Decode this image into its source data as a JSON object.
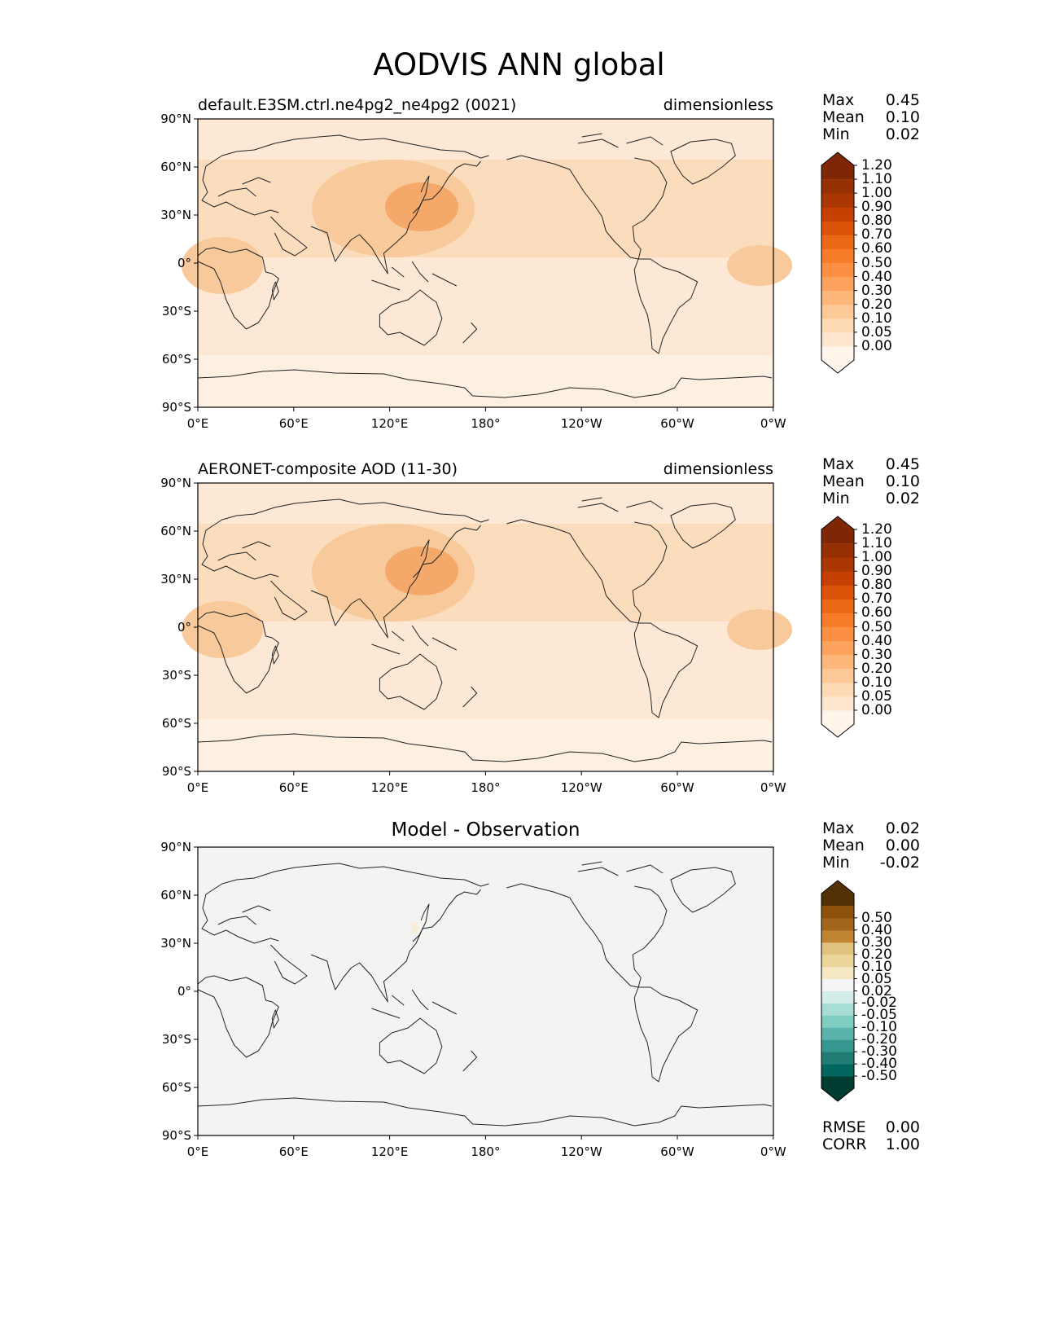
{
  "figure": {
    "title": "AODVIS ANN global"
  },
  "axes": {
    "lat_labels": [
      "90°N",
      "60°N",
      "30°N",
      "0°",
      "30°S",
      "60°S",
      "90°S"
    ],
    "lon_labels": [
      "0°E",
      "60°E",
      "120°E",
      "180°",
      "120°W",
      "60°W",
      "0°W"
    ]
  },
  "panels": [
    {
      "left_title": "default.E3SM.ctrl.ne4pg2_ne4pg2 (0021)",
      "center_title": "",
      "right_title": "dimensionless",
      "stats": [
        [
          "Max",
          "0.45"
        ],
        [
          "Mean",
          "0.10"
        ],
        [
          "Min",
          "0.02"
        ]
      ],
      "colorbar": {
        "levels": [
          "1.20",
          "1.10",
          "1.00",
          "0.90",
          "0.80",
          "0.70",
          "0.60",
          "0.50",
          "0.40",
          "0.30",
          "0.20",
          "0.10",
          "0.05",
          "0.00"
        ],
        "colors": [
          "#fff5eb",
          "#fee6ce",
          "#fdd9b4",
          "#fdc997",
          "#fdb77a",
          "#fda35d",
          "#fd8f42",
          "#f77d2a",
          "#eb6816",
          "#dc540a",
          "#c44103",
          "#ab3703",
          "#963003",
          "#7f2704"
        ]
      },
      "footer_stats": []
    },
    {
      "left_title": "AERONET-composite AOD (11-30)",
      "center_title": "",
      "right_title": "dimensionless",
      "stats": [
        [
          "Max",
          "0.45"
        ],
        [
          "Mean",
          "0.10"
        ],
        [
          "Min",
          "0.02"
        ]
      ],
      "colorbar": {
        "levels": [
          "1.20",
          "1.10",
          "1.00",
          "0.90",
          "0.80",
          "0.70",
          "0.60",
          "0.50",
          "0.40",
          "0.30",
          "0.20",
          "0.10",
          "0.05",
          "0.00"
        ],
        "colors": [
          "#fff5eb",
          "#fee6ce",
          "#fdd9b4",
          "#fdc997",
          "#fdb77a",
          "#fda35d",
          "#fd8f42",
          "#f77d2a",
          "#eb6816",
          "#dc540a",
          "#c44103",
          "#ab3703",
          "#963003",
          "#7f2704"
        ]
      },
      "footer_stats": []
    },
    {
      "left_title": "",
      "center_title": "Model - Observation",
      "right_title": "",
      "stats": [
        [
          "Max",
          "0.02"
        ],
        [
          "Mean",
          "0.00"
        ],
        [
          "Min",
          "-0.02"
        ]
      ],
      "colorbar": {
        "levels": [
          "0.50",
          "0.40",
          "0.30",
          "0.20",
          "0.10",
          "0.05",
          "0.02",
          "-0.02",
          "-0.05",
          "-0.10",
          "-0.20",
          "-0.30",
          "-0.40",
          "-0.50"
        ],
        "colors": [
          "#003c30",
          "#01665e",
          "#217d74",
          "#35978f",
          "#5ab4ac",
          "#80cdc1",
          "#a8ddd5",
          "#d3eeea",
          "#f5f5f5",
          "#f6e8c3",
          "#ecd59a",
          "#dfc27d",
          "#c08432",
          "#a1661b",
          "#8c510a",
          "#543005"
        ]
      },
      "footer_stats": [
        [
          "RMSE",
          "0.00"
        ],
        [
          "CORR",
          "1.00"
        ]
      ]
    }
  ]
}
